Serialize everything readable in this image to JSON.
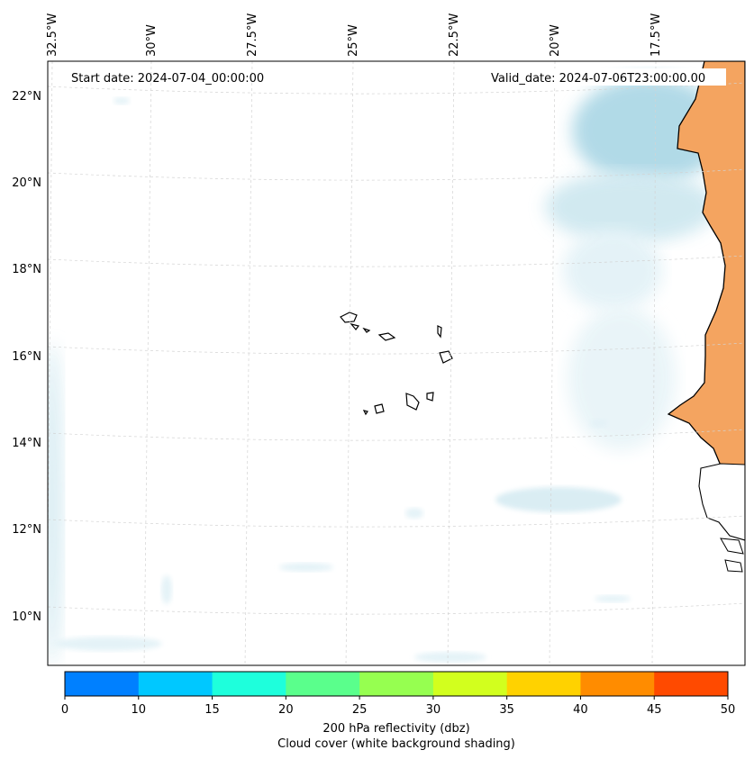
{
  "map": {
    "start_label": "Start date: 2024-07-04_00:00:00",
    "valid_label": "Valid_date: 2024-07-06T23:00:00.00",
    "lon_labels": [
      "32.5°W",
      "30°W",
      "27.5°W",
      "25°W",
      "22.5°W",
      "20°W",
      "17.5°W"
    ],
    "lat_labels": [
      "22°N",
      "20°N",
      "18°N",
      "16°N",
      "14°N",
      "12°N",
      "10°N"
    ],
    "land_color": "#f4a460",
    "cloud_color": "#add8e6"
  },
  "colorbar": {
    "ticks": [
      "0",
      "10",
      "15",
      "20",
      "25",
      "30",
      "35",
      "40",
      "45",
      "50"
    ],
    "colors": [
      "#0080ff",
      "#00c8ff",
      "#1effdc",
      "#5aff8c",
      "#96ff50",
      "#d2ff1e",
      "#ffd200",
      "#ff8c00",
      "#ff4a00"
    ],
    "label_line1": "200 hPa reflectivity (dbz)",
    "label_line2": "Cloud cover (white background shading)"
  }
}
